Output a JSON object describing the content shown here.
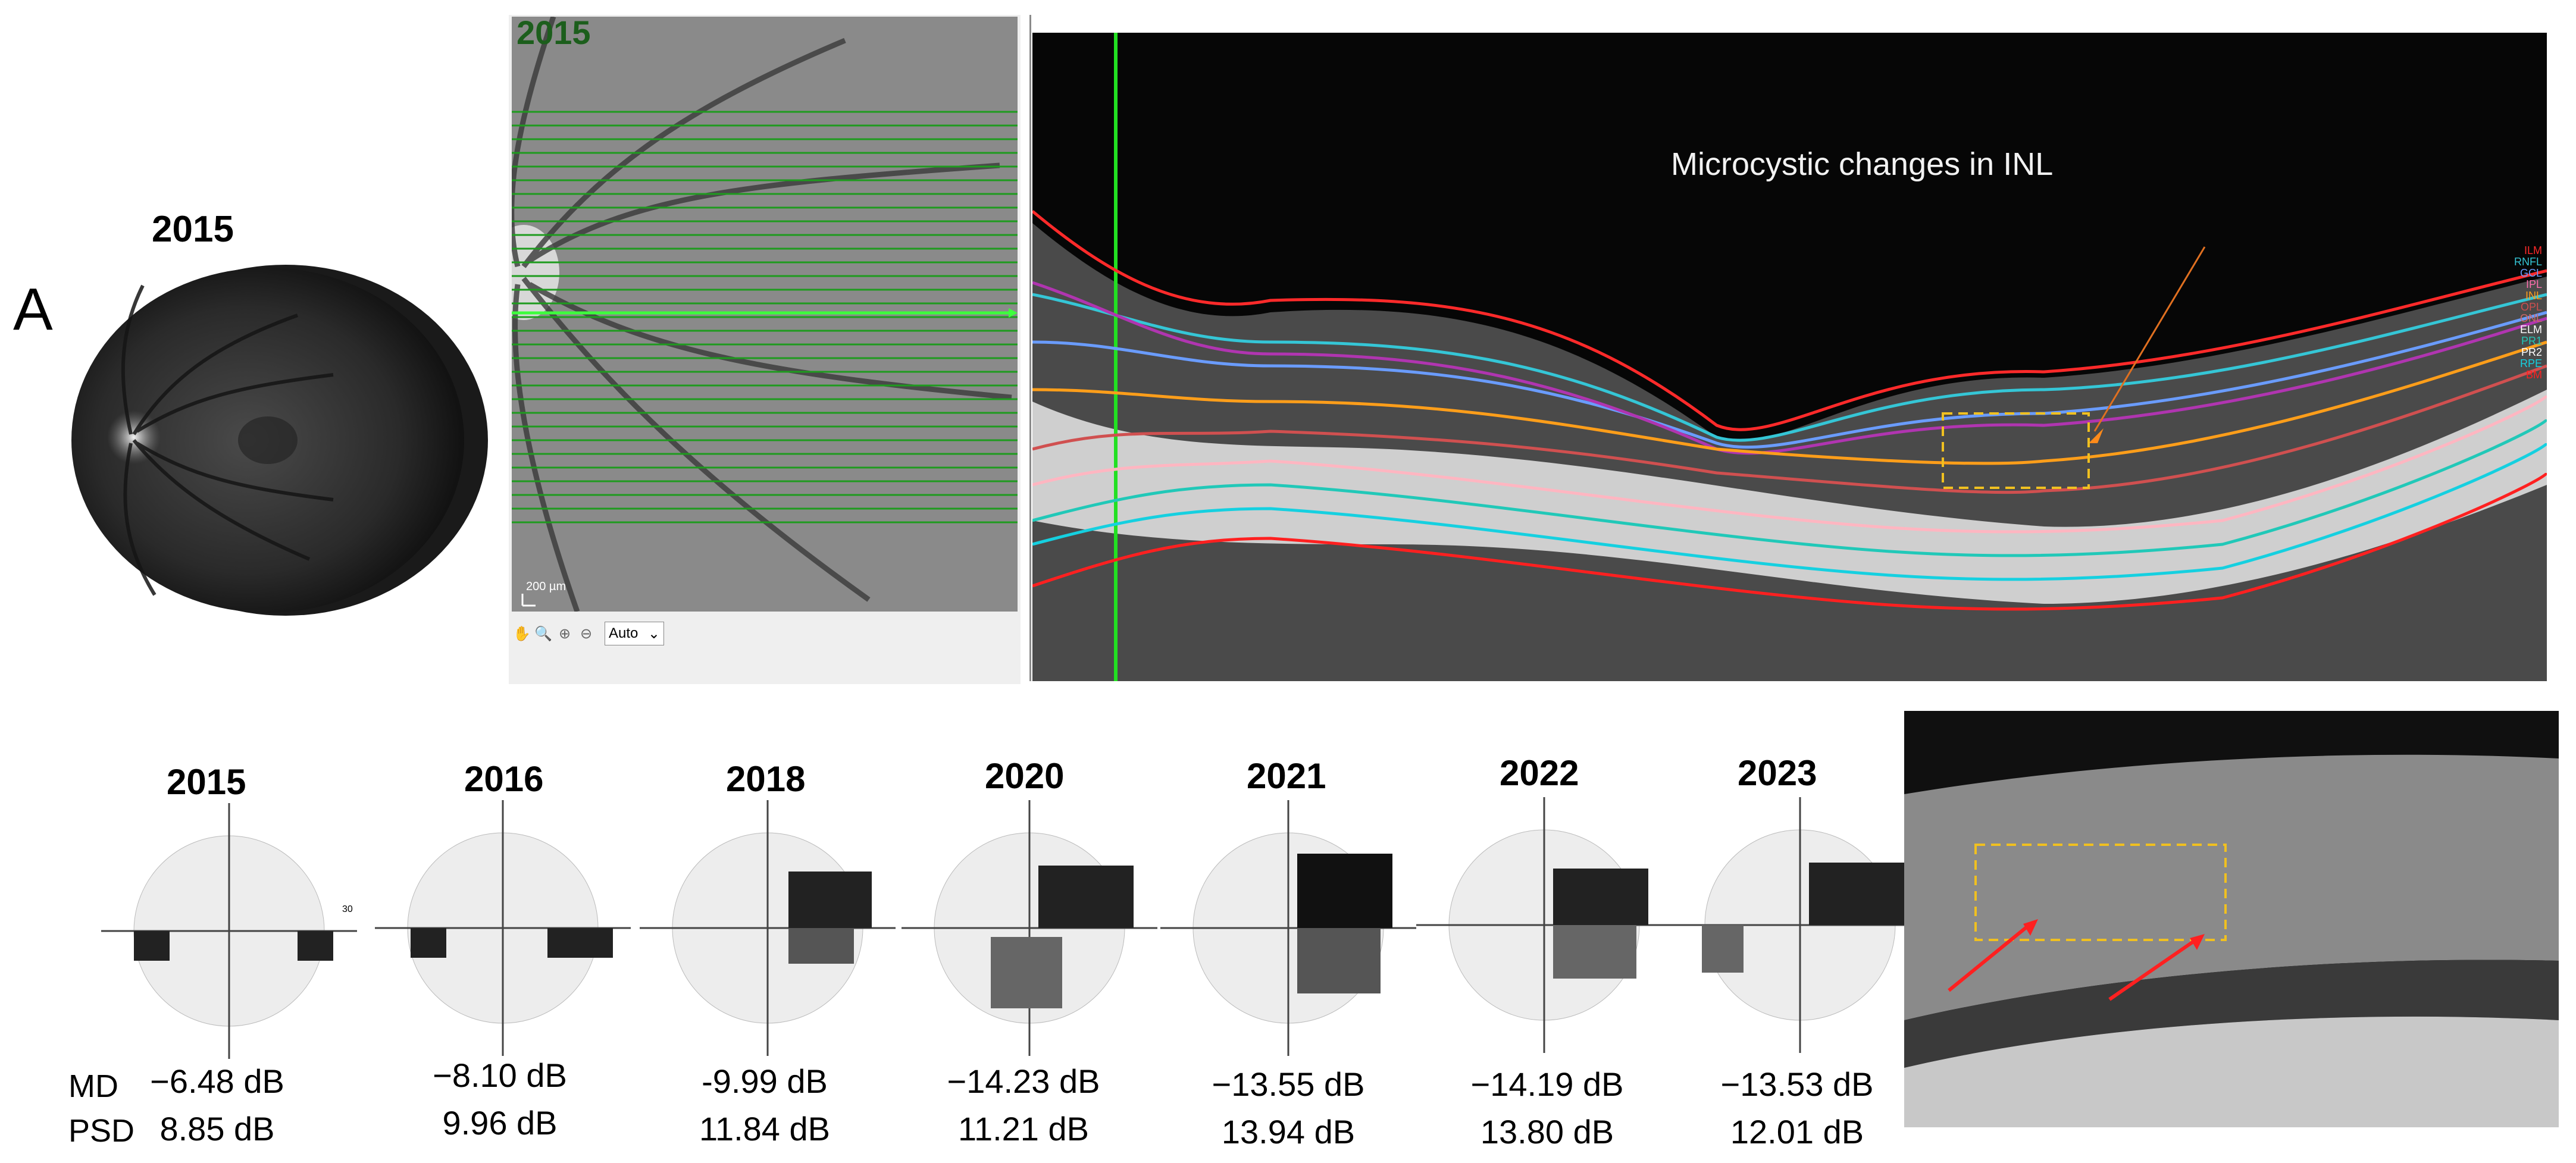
{
  "panel_label": "A",
  "fundus": {
    "year": "2015"
  },
  "ir_image": {
    "year": "2015",
    "scale_bar": "200 µm",
    "toolbar": {
      "icons": [
        "hand-icon",
        "magnifier-icon",
        "zoom-in-icon",
        "zoom-out-icon"
      ],
      "zoom_value": "Auto",
      "zoom_caret": "⌄"
    }
  },
  "oct_scan": {
    "annotation": "Microcystic changes in INL",
    "layer_labels": [
      "ILM",
      "RNFL",
      "GCL",
      "IPL",
      "INL",
      "OPL",
      "ONL",
      "ELM",
      "PR1",
      "PR2",
      "RPE",
      "BM"
    ],
    "layer_colors": [
      "#ff2a2a",
      "#35c6d6",
      "#6a9cff",
      "#ff6fae",
      "#ff9e1a",
      "#d05050",
      "#cc6666",
      "#ffffff",
      "#21c8b8",
      "#ffffff",
      "#15d0e0",
      "#ff2020"
    ]
  },
  "visual_fields": [
    {
      "year": "2015",
      "md": "−6.48 dB",
      "psd": "8.85 dB"
    },
    {
      "year": "2016",
      "md": "−8.10 dB",
      "psd": "9.96 dB"
    },
    {
      "year": "2018",
      "md": "-9.99 dB",
      "psd": "11.84 dB"
    },
    {
      "year": "2020",
      "md": "−14.23 dB",
      "psd": "11.21 dB"
    },
    {
      "year": "2021",
      "md": "−13.55 dB",
      "psd": "13.94 dB"
    },
    {
      "year": "2022",
      "md": "−14.19 dB",
      "psd": "13.80 dB"
    },
    {
      "year": "2023",
      "md": "−13.53 dB",
      "psd": "12.01 dB"
    }
  ],
  "vf_row_labels": {
    "md": "MD",
    "psd": "PSD"
  },
  "vf_axis_tick": "30"
}
